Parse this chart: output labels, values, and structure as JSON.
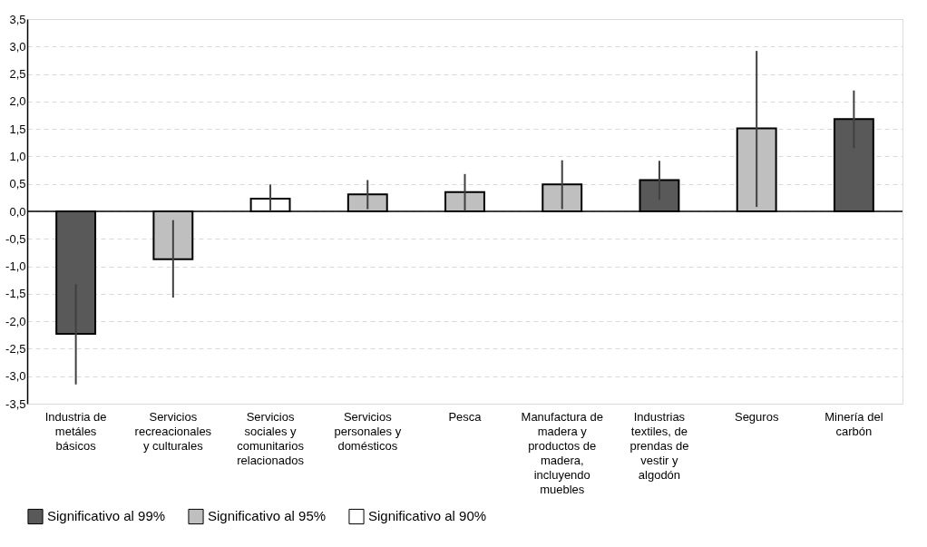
{
  "chart_data": {
    "type": "bar",
    "categories": [
      "Industria de metáles básicos",
      "Servicios recreacionales y culturales",
      "Servicios sociales y comunitarios relacionados",
      "Servicios personales y domésticos",
      "Pesca",
      "Manufactura de madera y productos de madera, incluyendo muebles",
      "Industrias textiles, de prendas de vestir y algodón",
      "Seguros",
      "Minería del carbón"
    ],
    "series": [
      {
        "name": "Significativo al 99%",
        "color": "#595959",
        "values": [
          -2.23,
          null,
          null,
          null,
          null,
          null,
          0.57,
          null,
          1.68
        ],
        "errors": [
          [
            -3.15,
            -1.32
          ],
          null,
          null,
          null,
          null,
          null,
          [
            0.21,
            0.92
          ],
          null,
          [
            1.15,
            2.2
          ]
        ]
      },
      {
        "name": "Significativo al 95%",
        "color": "#bfbfbf",
        "values": [
          null,
          -0.87,
          null,
          0.31,
          0.35,
          0.49,
          null,
          1.51,
          null
        ],
        "errors": [
          null,
          [
            -1.57,
            -0.16
          ],
          null,
          [
            0.04,
            0.57
          ],
          [
            0.0,
            0.68
          ],
          [
            0.04,
            0.93
          ],
          null,
          [
            0.08,
            2.92
          ],
          null
        ]
      },
      {
        "name": "Significativo al 90%",
        "color": "#ffffff",
        "values": [
          null,
          null,
          0.23,
          null,
          null,
          null,
          null,
          null,
          null
        ],
        "errors": [
          null,
          null,
          [
            0.0,
            0.49
          ],
          null,
          null,
          null,
          null,
          null,
          null
        ]
      }
    ],
    "ylim": [
      -3.5,
      3.5
    ],
    "yticks": [
      {
        "value": -3.5,
        "label": "-3,5"
      },
      {
        "value": -3,
        "label": "-3,0"
      },
      {
        "value": -2.5,
        "label": "-2,5"
      },
      {
        "value": -2,
        "label": "-2,0"
      },
      {
        "value": -1.5,
        "label": "-1,5"
      },
      {
        "value": -1,
        "label": "-1,0"
      },
      {
        "value": -0.5,
        "label": "-0,5"
      },
      {
        "value": 0,
        "label": "0,0"
      },
      {
        "value": 0.5,
        "label": "0,5"
      },
      {
        "value": 1,
        "label": "1,0"
      },
      {
        "value": 1.5,
        "label": "1,5"
      },
      {
        "value": 2,
        "label": "2,0"
      },
      {
        "value": 2.5,
        "label": "2,5"
      },
      {
        "value": 3,
        "label": "3,0"
      },
      {
        "value": 3.5,
        "label": "3,5"
      }
    ],
    "grid": "y",
    "legend": "bottom"
  }
}
